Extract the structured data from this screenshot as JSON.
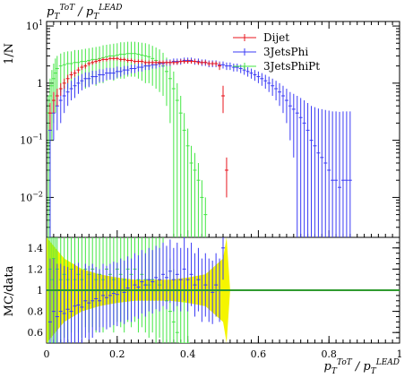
{
  "chart_data": [
    {
      "type": "line",
      "panel": "main",
      "title": "p_T^ToT / p_T^LEAD",
      "ylabel": "1/N",
      "yscale": "log",
      "ylim": [
        0.002,
        12
      ],
      "xlim": [
        0,
        1
      ],
      "y_tick_labels": [
        {
          "base": "10",
          "exp": "1",
          "value": 10
        },
        {
          "base": "1",
          "exp": "",
          "value": 1
        },
        {
          "base": "10",
          "exp": "−1",
          "value": 0.1
        },
        {
          "base": "10",
          "exp": "−2",
          "value": 0.01
        }
      ],
      "legend_position": "top-right",
      "series": [
        {
          "name": "Dijet",
          "color": "#e8141e",
          "x": [
            0.01,
            0.02,
            0.03,
            0.04,
            0.05,
            0.06,
            0.07,
            0.08,
            0.09,
            0.1,
            0.11,
            0.12,
            0.13,
            0.14,
            0.15,
            0.16,
            0.17,
            0.18,
            0.19,
            0.2,
            0.21,
            0.22,
            0.23,
            0.24,
            0.25,
            0.26,
            0.27,
            0.28,
            0.29,
            0.3,
            0.31,
            0.32,
            0.33,
            0.34,
            0.35,
            0.36,
            0.37,
            0.38,
            0.39,
            0.4,
            0.41,
            0.42,
            0.43,
            0.44,
            0.45,
            0.46,
            0.47,
            0.48,
            0.49,
            0.5,
            0.51
          ],
          "y": [
            0.3,
            0.5,
            0.6,
            0.8,
            1.0,
            1.2,
            1.4,
            1.5,
            1.7,
            1.9,
            2.0,
            2.2,
            2.3,
            2.4,
            2.5,
            2.6,
            2.6,
            2.7,
            2.7,
            2.7,
            2.6,
            2.6,
            2.5,
            2.5,
            2.4,
            2.4,
            2.4,
            2.3,
            2.3,
            2.3,
            2.3,
            2.3,
            2.3,
            2.3,
            2.3,
            2.3,
            2.3,
            2.4,
            2.4,
            2.4,
            2.4,
            2.4,
            2.3,
            2.3,
            2.3,
            2.2,
            2.2,
            2.2,
            2.0,
            0.6,
            0.03
          ],
          "err": [
            0.15,
            0.2,
            0.2,
            0.2,
            0.2,
            0.2,
            0.2,
            0.2,
            0.2,
            0.2,
            0.2,
            0.2,
            0.2,
            0.2,
            0.2,
            0.2,
            0.2,
            0.2,
            0.2,
            0.2,
            0.2,
            0.2,
            0.2,
            0.2,
            0.2,
            0.2,
            0.2,
            0.2,
            0.2,
            0.2,
            0.2,
            0.2,
            0.2,
            0.2,
            0.2,
            0.2,
            0.2,
            0.2,
            0.2,
            0.2,
            0.2,
            0.2,
            0.2,
            0.2,
            0.2,
            0.2,
            0.2,
            0.2,
            0.3,
            0.3,
            0.02
          ]
        },
        {
          "name": "3JetsPhi",
          "color": "#3b3bf5",
          "x": [
            0.01,
            0.02,
            0.03,
            0.04,
            0.05,
            0.06,
            0.07,
            0.08,
            0.09,
            0.1,
            0.11,
            0.12,
            0.13,
            0.14,
            0.15,
            0.16,
            0.17,
            0.18,
            0.19,
            0.2,
            0.21,
            0.22,
            0.23,
            0.24,
            0.25,
            0.26,
            0.27,
            0.28,
            0.29,
            0.3,
            0.31,
            0.32,
            0.33,
            0.34,
            0.35,
            0.36,
            0.37,
            0.38,
            0.39,
            0.4,
            0.41,
            0.42,
            0.43,
            0.44,
            0.45,
            0.46,
            0.47,
            0.48,
            0.49,
            0.5,
            0.51,
            0.52,
            0.53,
            0.54,
            0.55,
            0.56,
            0.57,
            0.58,
            0.59,
            0.6,
            0.61,
            0.62,
            0.63,
            0.64,
            0.65,
            0.66,
            0.67,
            0.68,
            0.69,
            0.7,
            0.71,
            0.72,
            0.73,
            0.74,
            0.75,
            0.76,
            0.77,
            0.78,
            0.79,
            0.8,
            0.81,
            0.82,
            0.83,
            0.84,
            0.85,
            0.86
          ],
          "y": [
            0.15,
            0.3,
            0.4,
            0.5,
            0.6,
            0.7,
            0.8,
            0.9,
            1.0,
            1.1,
            1.2,
            1.2,
            1.3,
            1.3,
            1.4,
            1.4,
            1.5,
            1.5,
            1.5,
            1.6,
            1.6,
            1.7,
            1.7,
            1.8,
            1.8,
            1.9,
            1.9,
            2.0,
            2.0,
            2.1,
            2.1,
            2.2,
            2.2,
            2.3,
            2.3,
            2.4,
            2.4,
            2.4,
            2.5,
            2.5,
            2.5,
            2.4,
            2.4,
            2.3,
            2.3,
            2.2,
            2.2,
            2.2,
            2.1,
            2.1,
            2.0,
            2.0,
            1.9,
            1.9,
            1.8,
            1.7,
            1.6,
            1.5,
            1.4,
            1.3,
            1.2,
            1.1,
            1.0,
            0.9,
            0.8,
            0.7,
            0.6,
            0.5,
            0.4,
            0.35,
            0.3,
            0.25,
            0.2,
            0.15,
            0.1,
            0.08,
            0.06,
            0.05,
            0.04,
            0.03,
            0.02,
            0.02,
            0.015,
            0.02,
            0.02,
            0.02
          ],
          "err": [
            0.15,
            0.2,
            0.25,
            0.3,
            0.3,
            0.3,
            0.3,
            0.35,
            0.35,
            0.35,
            0.35,
            0.35,
            0.35,
            0.35,
            0.35,
            0.35,
            0.35,
            0.35,
            0.35,
            0.35,
            0.3,
            0.3,
            0.3,
            0.3,
            0.3,
            0.3,
            0.3,
            0.3,
            0.3,
            0.3,
            0.3,
            0.3,
            0.3,
            0.3,
            0.3,
            0.3,
            0.3,
            0.3,
            0.3,
            0.3,
            0.3,
            0.3,
            0.3,
            0.3,
            0.3,
            0.3,
            0.3,
            0.3,
            0.3,
            0.3,
            0.3,
            0.3,
            0.3,
            0.3,
            0.3,
            0.3,
            0.3,
            0.3,
            0.3,
            0.3,
            0.3,
            0.3,
            0.3,
            0.3,
            0.3,
            0.3,
            0.3,
            0.3,
            0.3,
            0.3,
            0.3,
            0.3,
            0.3,
            0.3,
            0.3,
            0.3,
            0.3,
            0.3,
            0.3,
            0.3,
            0.3,
            0.3,
            0.3,
            0.3,
            0.3,
            0.3
          ]
        },
        {
          "name": "3JetsPhiPt",
          "color": "#44e644",
          "x": [
            0.005,
            0.01,
            0.015,
            0.02,
            0.025,
            0.03,
            0.04,
            0.05,
            0.06,
            0.07,
            0.08,
            0.09,
            0.1,
            0.11,
            0.12,
            0.13,
            0.14,
            0.15,
            0.16,
            0.17,
            0.18,
            0.19,
            0.2,
            0.21,
            0.22,
            0.23,
            0.24,
            0.25,
            0.26,
            0.27,
            0.28,
            0.29,
            0.3,
            0.31,
            0.32,
            0.33,
            0.34,
            0.35,
            0.36,
            0.37,
            0.38,
            0.39,
            0.4,
            0.41,
            0.42,
            0.43,
            0.44,
            0.45
          ],
          "y": [
            0.3,
            0.6,
            0.9,
            1.2,
            1.5,
            1.8,
            2.0,
            2.1,
            2.2,
            2.2,
            2.3,
            2.3,
            2.4,
            2.4,
            2.5,
            2.6,
            2.6,
            2.7,
            2.8,
            2.9,
            3.0,
            3.0,
            3.1,
            3.2,
            3.2,
            3.3,
            3.3,
            3.3,
            3.2,
            3.1,
            3.0,
            2.9,
            2.7,
            2.5,
            2.3,
            2.0,
            1.6,
            1.2,
            0.8,
            0.5,
            0.3,
            0.15,
            0.08,
            0.04,
            0.03,
            0.02,
            0.01,
            0.005
          ],
          "err": [
            0.3,
            0.6,
            0.8,
            1.0,
            1.2,
            1.2,
            1.3,
            1.4,
            1.4,
            1.4,
            1.5,
            1.5,
            1.5,
            1.6,
            1.6,
            1.6,
            1.7,
            1.7,
            1.8,
            1.8,
            1.8,
            1.9,
            1.9,
            2.0,
            2.0,
            2.0,
            2.0,
            2.0,
            2.0,
            2.0,
            2.0,
            1.9,
            1.8,
            1.7,
            1.6,
            1.4,
            1.2,
            1.0,
            0.8,
            0.5,
            0.3,
            0.15,
            0.08,
            0.04,
            0.03,
            0.02,
            0.01,
            0.005
          ]
        }
      ]
    },
    {
      "type": "line",
      "panel": "ratio",
      "ylabel": "MC/data",
      "xlabel": "p_T^ToT / p_T^LEAD",
      "xlim": [
        0,
        1
      ],
      "ylim": [
        0.5,
        1.5
      ],
      "x_ticks": [
        0,
        0.2,
        0.4,
        0.6,
        0.8,
        1
      ],
      "x_tick_labels": [
        "0",
        "0.2",
        "0.4",
        "0.6",
        "0.8",
        "1"
      ],
      "y_ticks": [
        0.6,
        0.8,
        1,
        1.2,
        1.4
      ],
      "y_tick_labels": [
        "0.6",
        "0.8",
        "1",
        "1.2",
        "1.4"
      ],
      "reference_line": 1,
      "reference_color": "#2f9a2f",
      "band_color": "#f5f500",
      "band": {
        "x": [
          0.0,
          0.05,
          0.1,
          0.15,
          0.2,
          0.25,
          0.3,
          0.35,
          0.4,
          0.45,
          0.5,
          0.51,
          0.52,
          0.53
        ],
        "lo": [
          0.5,
          0.7,
          0.8,
          0.85,
          0.88,
          0.9,
          0.9,
          0.9,
          0.88,
          0.85,
          0.7,
          0.5,
          1,
          1
        ],
        "hi": [
          1.5,
          1.3,
          1.2,
          1.15,
          1.12,
          1.1,
          1.1,
          1.1,
          1.12,
          1.15,
          1.3,
          1.5,
          1,
          1
        ]
      },
      "series": [
        {
          "name": "3JetsPhi",
          "color": "#3b3bf5",
          "x": [
            0.01,
            0.02,
            0.03,
            0.04,
            0.05,
            0.06,
            0.07,
            0.08,
            0.09,
            0.1,
            0.11,
            0.12,
            0.13,
            0.14,
            0.15,
            0.16,
            0.17,
            0.18,
            0.19,
            0.2,
            0.21,
            0.22,
            0.23,
            0.24,
            0.25,
            0.26,
            0.27,
            0.28,
            0.29,
            0.3,
            0.31,
            0.32,
            0.33,
            0.34,
            0.35,
            0.36,
            0.37,
            0.38,
            0.39,
            0.4,
            0.41,
            0.42,
            0.43,
            0.44,
            0.45,
            0.46,
            0.47,
            0.48,
            0.49,
            0.5
          ],
          "y": [
            0.7,
            0.8,
            0.75,
            0.8,
            0.78,
            0.82,
            0.8,
            0.85,
            0.86,
            0.84,
            0.9,
            0.88,
            0.9,
            0.92,
            0.9,
            0.95,
            0.93,
            0.95,
            0.97,
            0.96,
            1.0,
            0.98,
            1.02,
            1.0,
            1.05,
            1.03,
            1.08,
            1.05,
            1.1,
            1.08,
            1.12,
            1.1,
            1.15,
            1.12,
            1.18,
            1.1,
            1.15,
            1.1,
            1.2,
            1.1,
            1.15,
            1.05,
            1.1,
            1.0,
            1.05,
            1.0,
            0.98,
            1.05,
            1.0,
            1.4
          ],
          "err": [
            0.6,
            0.5,
            0.5,
            0.45,
            0.45,
            0.4,
            0.4,
            0.4,
            0.4,
            0.35,
            0.35,
            0.35,
            0.35,
            0.3,
            0.3,
            0.3,
            0.3,
            0.3,
            0.3,
            0.3,
            0.3,
            0.3,
            0.3,
            0.3,
            0.3,
            0.3,
            0.3,
            0.3,
            0.3,
            0.3,
            0.3,
            0.3,
            0.3,
            0.3,
            0.3,
            0.3,
            0.3,
            0.3,
            0.3,
            0.3,
            0.3,
            0.3,
            0.3,
            0.3,
            0.3,
            0.3,
            0.3,
            0.3,
            0.3,
            0.3
          ]
        },
        {
          "name": "3JetsPhiPt",
          "color": "#44e644",
          "x": [
            0.005,
            0.01,
            0.015,
            0.02,
            0.025,
            0.03,
            0.04,
            0.05,
            0.06,
            0.07,
            0.08,
            0.09,
            0.1,
            0.11,
            0.12,
            0.13,
            0.14,
            0.15,
            0.16,
            0.17,
            0.18,
            0.19,
            0.2,
            0.21,
            0.22,
            0.23,
            0.24,
            0.25,
            0.26,
            0.27,
            0.28,
            0.29,
            0.3,
            0.31,
            0.32,
            0.33,
            0.34,
            0.35,
            0.36,
            0.37,
            0.38,
            0.39,
            0.4
          ],
          "y": [
            1.0,
            1.2,
            1.1,
            1.3,
            1.0,
            1.2,
            1.1,
            1.15,
            1.1,
            1.2,
            1.1,
            1.15,
            1.1,
            1.2,
            1.15,
            1.2,
            1.1,
            1.15,
            1.1,
            1.2,
            1.15,
            1.1,
            1.2,
            1.15,
            1.1,
            1.2,
            1.15,
            1.2,
            1.1,
            1.15,
            1.1,
            1.05,
            1.1,
            1.0,
            1.05,
            1.0,
            0.9,
            0.8,
            0.7,
            0.6,
            0.5,
            0.5,
            0.5
          ],
          "err": [
            0.8,
            0.8,
            0.8,
            0.8,
            0.7,
            0.7,
            0.6,
            0.6,
            0.6,
            0.6,
            0.6,
            0.55,
            0.55,
            0.55,
            0.55,
            0.55,
            0.5,
            0.5,
            0.5,
            0.5,
            0.5,
            0.5,
            0.5,
            0.5,
            0.5,
            0.5,
            0.5,
            0.5,
            0.5,
            0.5,
            0.5,
            0.5,
            0.5,
            0.5,
            0.5,
            0.5,
            0.5,
            0.5,
            0.5,
            0.5,
            0.5,
            0.5,
            0.5
          ]
        }
      ]
    }
  ]
}
